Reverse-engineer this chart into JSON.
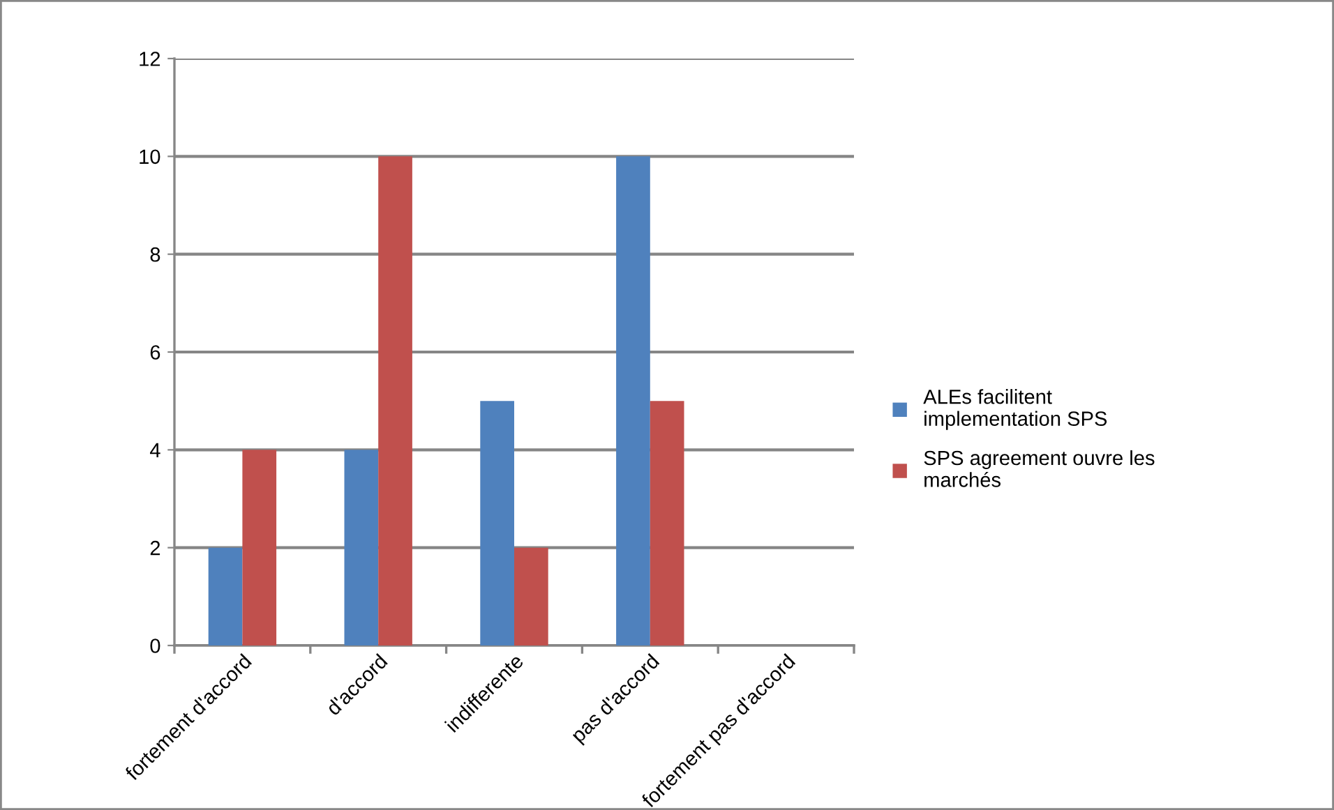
{
  "chart_data": {
    "type": "bar",
    "categories": [
      "fortement d'accord",
      "d'accord",
      "indifferente",
      "pas d'accord",
      "fortement pas d'accord"
    ],
    "series": [
      {
        "name": "ALEs facilitent implementation SPS",
        "color": "#4f81bd",
        "values": [
          2,
          4,
          5,
          10,
          0
        ]
      },
      {
        "name": "SPS agreement ouvre les marchés",
        "color": "#c0504d",
        "values": [
          4,
          10,
          2,
          5,
          0
        ]
      }
    ],
    "ylim": [
      0,
      12
    ],
    "yticks": [
      0,
      2,
      4,
      6,
      8,
      10,
      12
    ],
    "grid": "y",
    "legend": "right"
  }
}
